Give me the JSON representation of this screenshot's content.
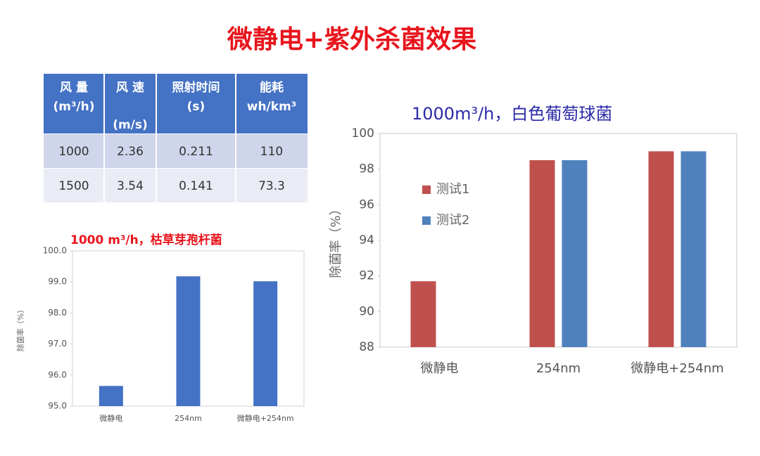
{
  "title": "微静电+紫外杀菌效果",
  "table": {
    "header": [
      [
        "风 量",
        "(m³/h)"
      ],
      [
        "风 速",
        "(m/s)"
      ],
      [
        "照射时间",
        "(s)"
      ],
      [
        "能耗",
        "wh/km³"
      ]
    ],
    "rows": [
      [
        1000,
        2.36,
        0.211,
        110
      ],
      [
        1500,
        3.54,
        0.141,
        73.3
      ]
    ]
  },
  "chart_data": [
    {
      "type": "bar",
      "title": "1000 m³/h，枯草芽孢杆菌",
      "y_label": "除菌率（%）",
      "categories": [
        "微静电",
        "254nm",
        "微静电+254nm"
      ],
      "series": [
        {
          "color": "#4472c4",
          "values": [
            95.65,
            99.18,
            99.02
          ]
        }
      ],
      "ylim": [
        95,
        100
      ],
      "yticks": [
        {
          "value": 95,
          "label": "95.0"
        },
        {
          "value": 96,
          "label": "96.0"
        },
        {
          "value": 97,
          "label": "97.0"
        },
        {
          "value": 98,
          "label": "98.0"
        },
        {
          "value": 99,
          "label": "99.0"
        },
        {
          "value": 100,
          "label": "100.0"
        }
      ]
    },
    {
      "type": "bar",
      "title": "1000m³/h，白色葡萄球菌",
      "y_label": "除菌率（%）",
      "categories": [
        "微静电",
        "254nm",
        "微静电+254nm"
      ],
      "series": [
        {
          "name": "测试1",
          "color": "#c0504d",
          "values": [
            91.7,
            98.5,
            99.0
          ]
        },
        {
          "name": "测试2",
          "color": "#4f81bd",
          "values": [
            null,
            98.5,
            99.0
          ]
        }
      ],
      "ylim": [
        88,
        100
      ],
      "yticks": [
        88,
        90,
        92,
        94,
        96,
        98,
        100
      ],
      "legend": "left"
    }
  ]
}
